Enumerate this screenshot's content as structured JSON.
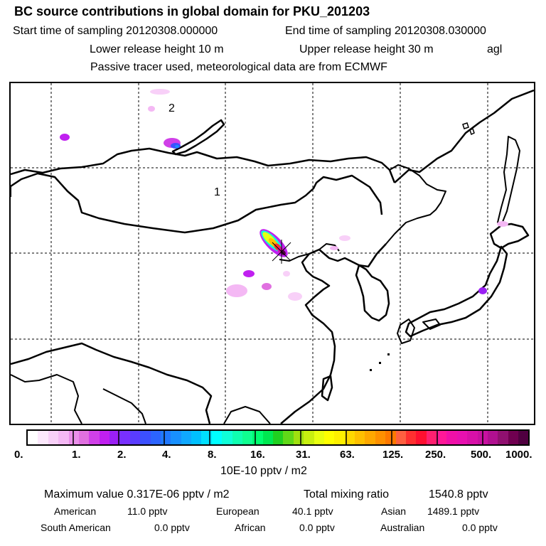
{
  "header": {
    "title": "BC  source contributions in global domain for PKU_201203",
    "start_label": "Start time of sampling 20120308.000000",
    "end_label": "End time of sampling 20120308.030000",
    "lower_label": "Lower release height   10 m",
    "upper_label": "Upper release height   30 m",
    "agl_label": "agl",
    "tracer_label": "Passive tracer used, meteorological data are from ECMWF"
  },
  "map": {
    "labels": [
      "1",
      "2"
    ],
    "receptor_marker": "x-icon"
  },
  "colorbar": {
    "colors": [
      "#ffffff",
      "#fce8fc",
      "#f8d0f8",
      "#f4b8f4",
      "#ea90ea",
      "#e070e0",
      "#d040e8",
      "#c020f0",
      "#9a20f4",
      "#7830ff",
      "#5a3cff",
      "#3c50ff",
      "#2c64ff",
      "#2078ff",
      "#1890ff",
      "#10a8ff",
      "#00c0ff",
      "#00e0ff",
      "#00ffff",
      "#10ffd8",
      "#10ffb0",
      "#10ff90",
      "#00ff70",
      "#00e850",
      "#20d020",
      "#60d818",
      "#a0e010",
      "#c8ef10",
      "#e8ff10",
      "#ffff00",
      "#fff000",
      "#ffd800",
      "#ffc000",
      "#ffa800",
      "#ff9000",
      "#ff7800",
      "#ff6040",
      "#ff3030",
      "#ff1030",
      "#ff2070",
      "#ff1898",
      "#f010a8",
      "#e810b0",
      "#d810a8",
      "#c810a0",
      "#b01090",
      "#901070",
      "#700050",
      "#500040"
    ],
    "ticks": [
      "0.",
      "1.",
      "2.",
      "4.",
      "8.",
      "16.",
      "31.",
      "63.",
      "125.",
      "250.",
      "500.",
      "1000."
    ],
    "unit": "10E-10 pptv / m2"
  },
  "footer": {
    "max_label": "Maximum value  0.317E-06 pptv / m2",
    "total_label": "Total mixing ratio",
    "total_value": "1540.8 pptv",
    "regions": [
      {
        "name": "American",
        "value": "11.0 pptv"
      },
      {
        "name": "European",
        "value": "40.1 pptv"
      },
      {
        "name": "Asian",
        "value": "1489.1 pptv"
      },
      {
        "name": "South American",
        "value": "0.0 pptv"
      },
      {
        "name": "African",
        "value": "0.0 pptv"
      },
      {
        "name": "Australian",
        "value": "0.0 pptv"
      }
    ]
  }
}
